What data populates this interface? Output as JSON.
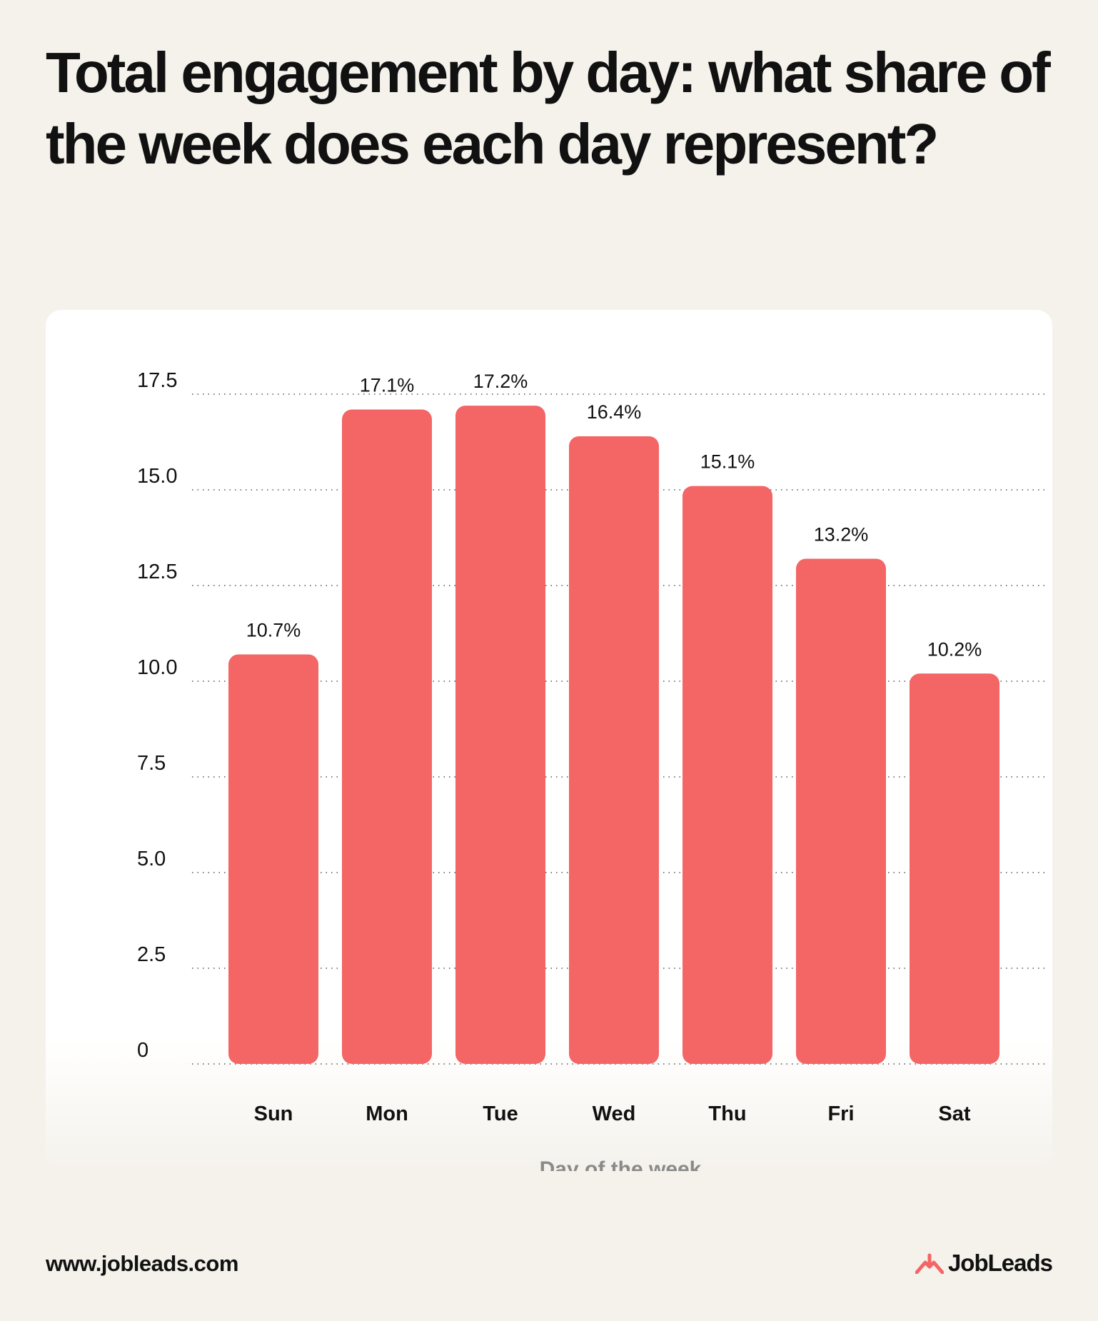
{
  "header": {
    "title": "Total engagement by day: what share of the week does each day represent?"
  },
  "chart_data": {
    "type": "bar",
    "categories": [
      "Sun",
      "Mon",
      "Tue",
      "Wed",
      "Thu",
      "Fri",
      "Sat"
    ],
    "values": [
      10.7,
      17.1,
      17.2,
      16.4,
      15.1,
      13.2,
      10.2
    ],
    "data_labels": [
      "10.7%",
      "17.1%",
      "17.2%",
      "16.4%",
      "15.1%",
      "13.2%",
      "10.2%"
    ],
    "title": "Total engagement by day: what share of the week does each day represent?",
    "xlabel": "Day of the week",
    "ylabel": "",
    "ylim": [
      0,
      17.5
    ],
    "yticks": [
      0,
      2.5,
      5.0,
      7.5,
      10.0,
      12.5,
      15.0,
      17.5
    ],
    "ytick_labels": [
      "0",
      "2.5",
      "5.0",
      "7.5",
      "10.0",
      "12.5",
      "15.0",
      "17.5"
    ],
    "grid": "horizontal dotted",
    "legend": "none",
    "bar_color": "#f46565"
  },
  "footer": {
    "url": "www.jobleads.com",
    "brand": "JobLeads",
    "brand_icon": "jobleads-logo-icon",
    "brand_color": "#f46565"
  }
}
